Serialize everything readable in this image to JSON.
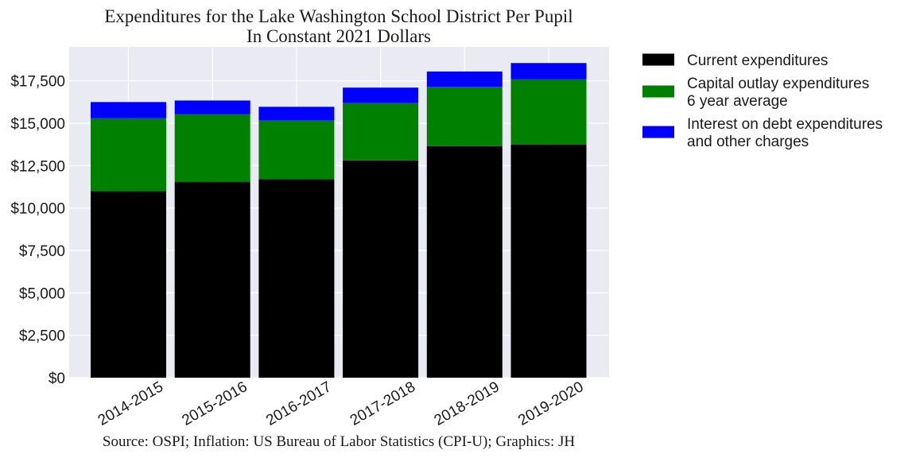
{
  "chart_data": {
    "type": "bar",
    "stacked": true,
    "title": "Expenditures for the Lake Washington School District Per Pupil",
    "subtitle": "In Constant 2021 Dollars",
    "source": "Source: OSPI; Inflation: US Bureau of Labor Statistics (CPI-U); Graphics: JH",
    "categories": [
      "2014-2015",
      "2015-2016",
      "2016-2017",
      "2017-2018",
      "2018-2019",
      "2019-2020"
    ],
    "series": [
      {
        "name": "Current expenditures",
        "color": "#000000",
        "values": [
          11000,
          11550,
          11700,
          12800,
          13650,
          13750
        ]
      },
      {
        "name": "Capital outlay expenditures\n6 year average",
        "color": "#008000",
        "values": [
          4300,
          3990,
          3470,
          3400,
          3500,
          3850
        ]
      },
      {
        "name": "Interest on debt expenditures\nand other charges",
        "color": "#0000ff",
        "values": [
          950,
          800,
          800,
          900,
          900,
          950
        ]
      }
    ],
    "ylim": [
      0,
      19500
    ],
    "yticks": [
      0,
      2500,
      5000,
      7500,
      10000,
      12500,
      15000,
      17500
    ],
    "ytick_labels": [
      "$0",
      "$2,500",
      "$5,000",
      "$7,500",
      "$10,000",
      "$12,500",
      "$15,000",
      "$17,500"
    ],
    "xlabel": "",
    "ylabel": "",
    "grid": true,
    "background": "#eaeaf2",
    "legend_placement": "outside-right"
  }
}
